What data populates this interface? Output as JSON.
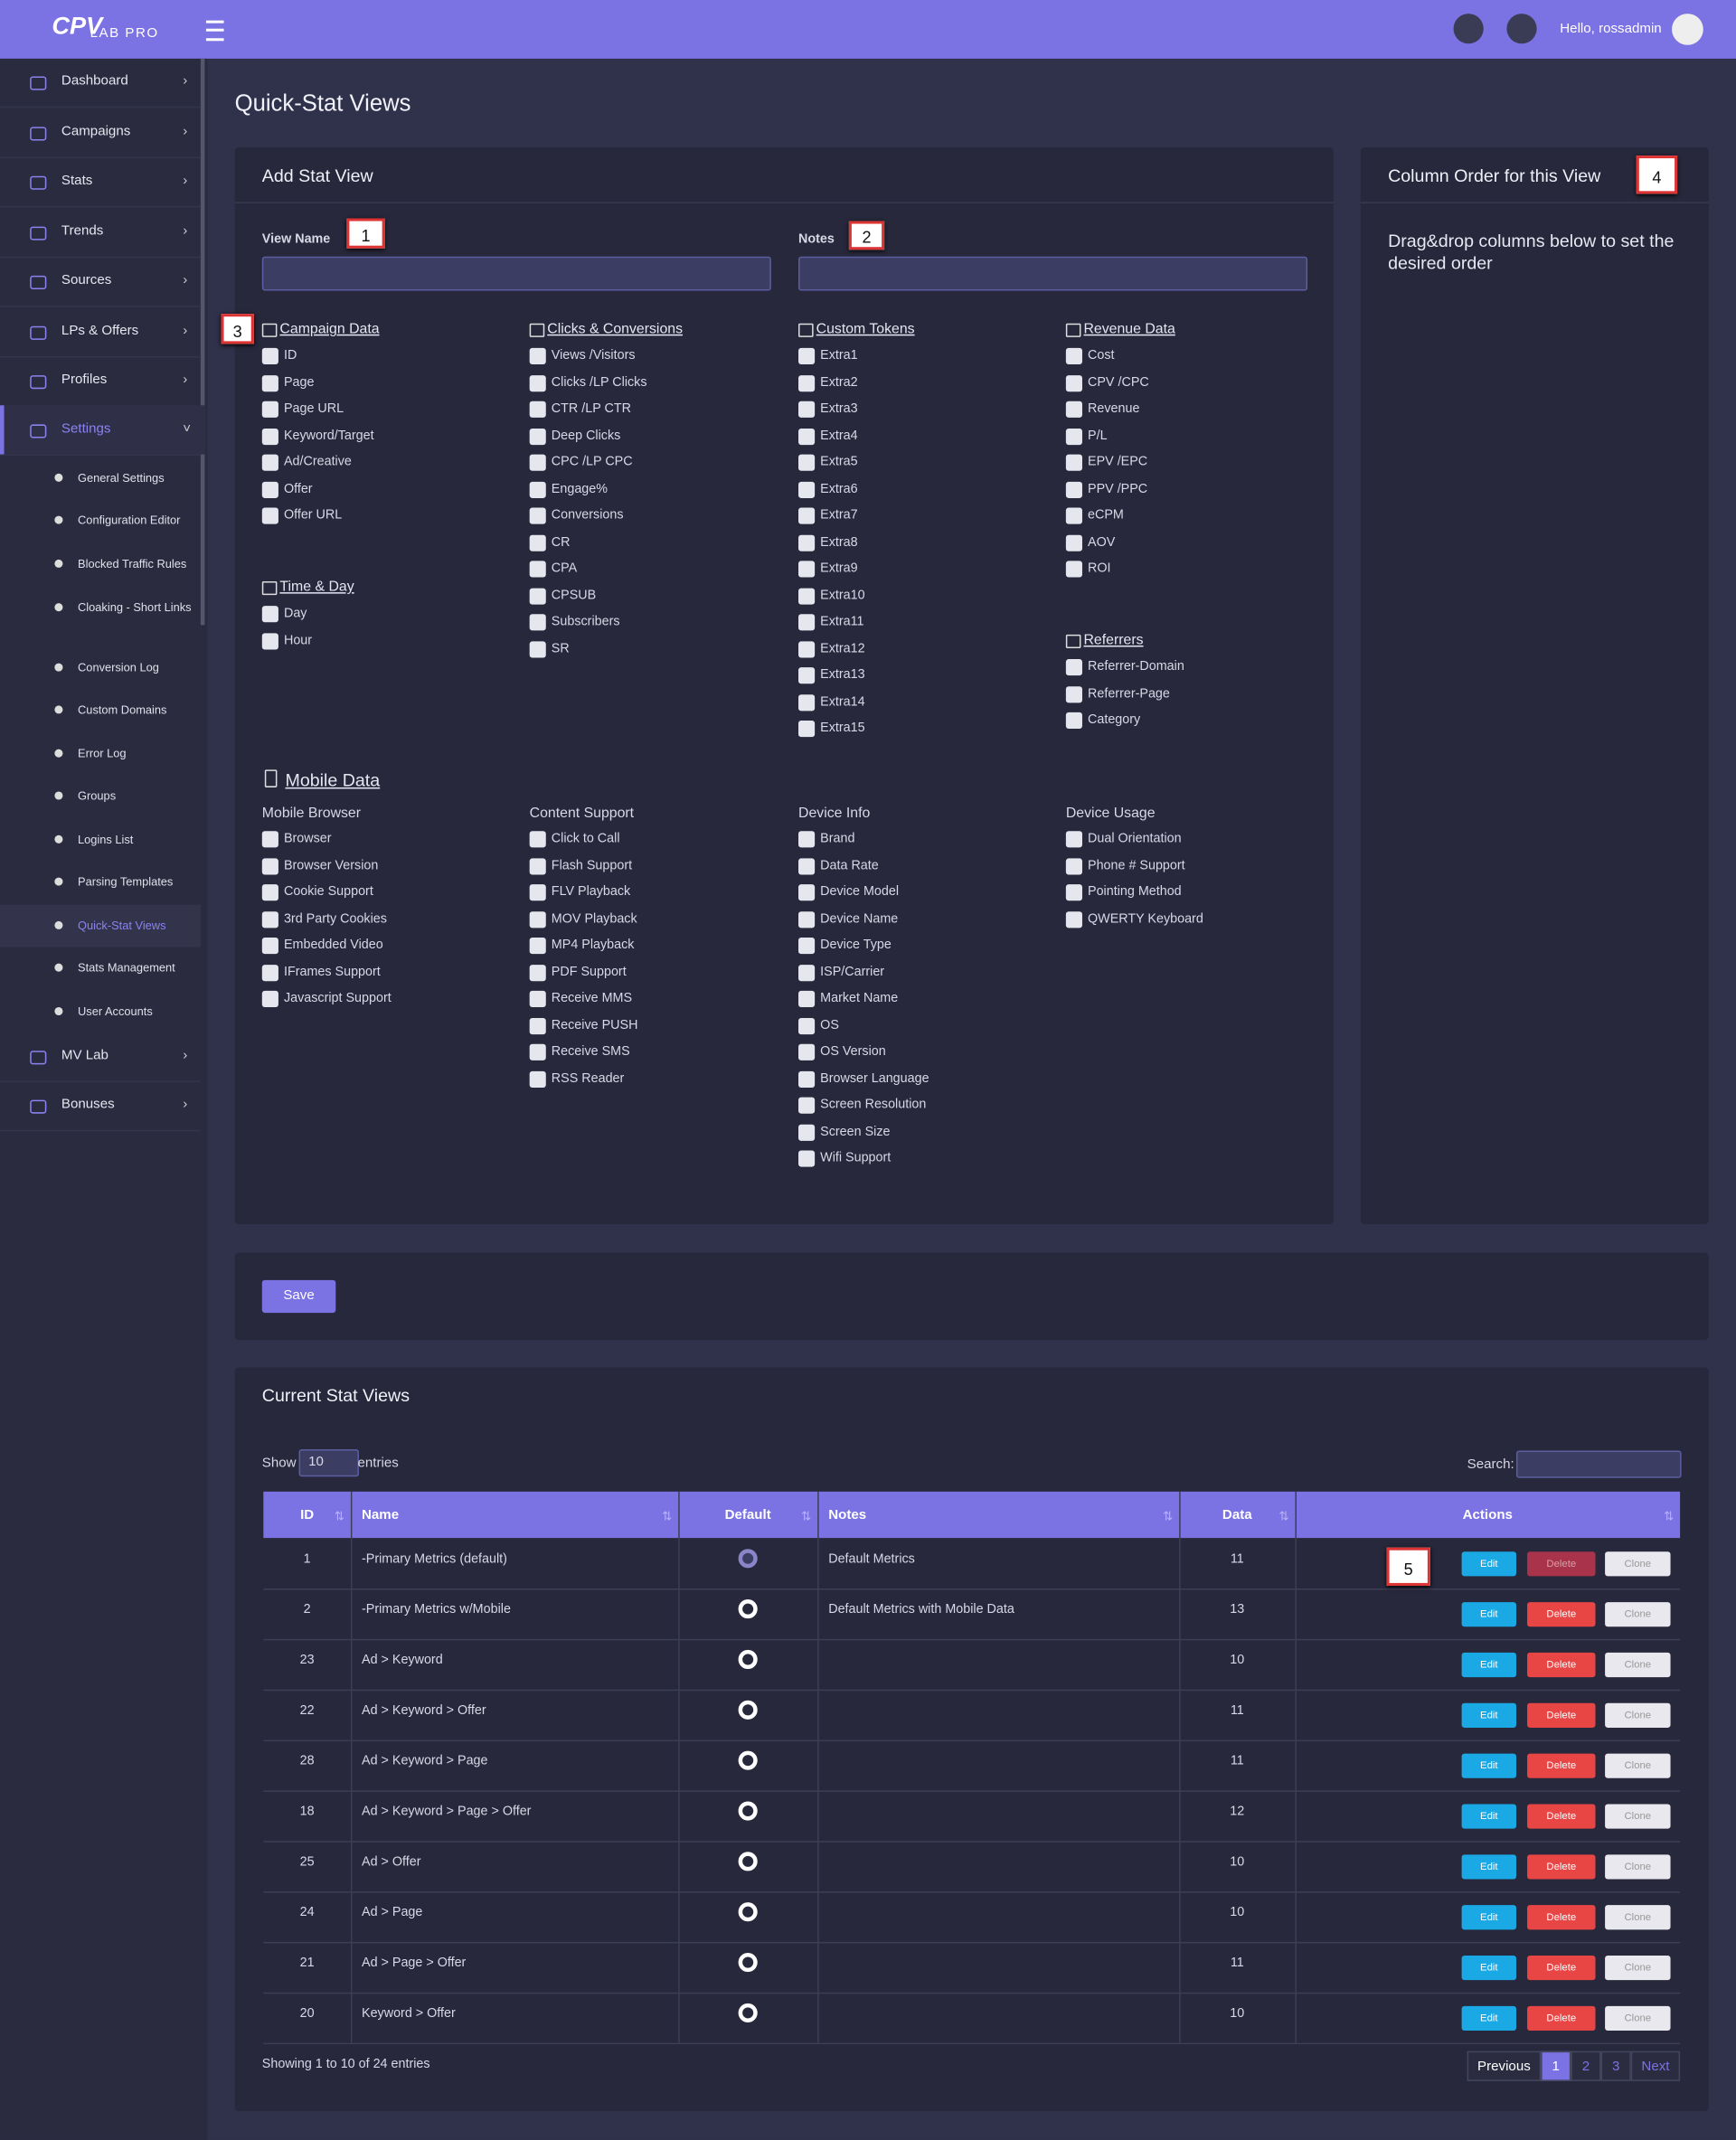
{
  "header": {
    "logo_main": "CPV",
    "logo_sub": "LAB PRO",
    "greeting": "Hello, rossadmin"
  },
  "sidebar": {
    "items": [
      "Dashboard",
      "Campaigns",
      "Stats",
      "Trends",
      "Sources",
      "LPs & Offers",
      "Profiles",
      "Settings",
      "MV Lab",
      "Bonuses"
    ],
    "settings_children": [
      "General Settings",
      "Configuration Editor",
      "Blocked Traffic Rules",
      "Cloaking - Short Links",
      "Conversion Log",
      "Custom Domains",
      "Error Log",
      "Groups",
      "Logins List",
      "Parsing Templates",
      "Quick-Stat Views",
      "Stats Management",
      "User Accounts"
    ]
  },
  "page_title": "Quick-Stat Views",
  "add_panel": {
    "title": "Add Stat View",
    "view_name_label": "View Name",
    "notes_label": "Notes",
    "sections": [
      {
        "title": "Campaign Data",
        "items": [
          "ID",
          "Page",
          "Page URL",
          "Keyword/Target",
          "Ad/Creative",
          "Offer",
          "Offer URL"
        ]
      },
      {
        "title": "Clicks & Conversions",
        "items": [
          "Views /Visitors",
          "Clicks /LP Clicks",
          "CTR /LP CTR",
          "Deep Clicks",
          "CPC /LP CPC",
          "Engage%",
          "Conversions",
          "CR",
          "CPA",
          "CPSUB",
          "Subscribers",
          "SR"
        ]
      },
      {
        "title": "Custom Tokens",
        "items": [
          "Extra1",
          "Extra2",
          "Extra3",
          "Extra4",
          "Extra5",
          "Extra6",
          "Extra7",
          "Extra8",
          "Extra9",
          "Extra10",
          "Extra11",
          "Extra12",
          "Extra13",
          "Extra14",
          "Extra15"
        ]
      },
      {
        "title": "Revenue Data",
        "items": [
          "Cost",
          "CPV /CPC",
          "Revenue",
          "P/L",
          "EPV /EPC",
          "PPV /PPC",
          "eCPM",
          "AOV",
          "ROI"
        ]
      },
      {
        "title": "Time & Day",
        "items": [
          "Day",
          "Hour"
        ]
      },
      {
        "title": "Referrers",
        "items": [
          "Referrer-Domain",
          "Referrer-Page",
          "Category"
        ]
      }
    ],
    "mobile": {
      "title": "Mobile Data",
      "groups": [
        {
          "title": "Mobile Browser",
          "items": [
            "Browser",
            "Browser Version",
            "Cookie Support",
            "3rd Party Cookies",
            "Embedded Video",
            "IFrames Support",
            "Javascript Support"
          ]
        },
        {
          "title": "Content Support",
          "items": [
            "Click to Call",
            "Flash Support",
            "FLV Playback",
            "MOV Playback",
            "MP4 Playback",
            "PDF Support",
            "Receive MMS",
            "Receive PUSH",
            "Receive SMS",
            "RSS Reader"
          ]
        },
        {
          "title": "Device Info",
          "items": [
            "Brand",
            "Data Rate",
            "Device Model",
            "Device Name",
            "Device Type",
            "ISP/Carrier",
            "Market Name",
            "OS",
            "OS Version",
            "Browser Language",
            "Screen Resolution",
            "Screen Size",
            "Wifi Support"
          ]
        },
        {
          "title": "Device Usage",
          "items": [
            "Dual Orientation",
            "Phone # Support",
            "Pointing Method",
            "QWERTY Keyboard"
          ]
        }
      ]
    }
  },
  "column_order": {
    "title": "Column Order for this View",
    "hint": "Drag&drop columns below to set the desired order"
  },
  "save": "Save",
  "current": {
    "title": "Current Stat Views",
    "show": "Show",
    "length": "10",
    "entries": "entries",
    "search": "Search:",
    "columns": [
      "ID",
      "Name",
      "Default",
      "Notes",
      "Data",
      "Actions"
    ],
    "rows": [
      {
        "id": 1,
        "name": "-Primary Metrics (default)",
        "default": true,
        "notes": "Default Metrics",
        "data": 11
      },
      {
        "id": 2,
        "name": "-Primary Metrics w/Mobile",
        "notes": "Default Metrics with Mobile Data",
        "data": 13
      },
      {
        "id": 23,
        "name": "Ad > Keyword",
        "data": 10
      },
      {
        "id": 22,
        "name": "Ad > Keyword > Offer",
        "data": 11
      },
      {
        "id": 28,
        "name": "Ad > Keyword > Page",
        "data": 11
      },
      {
        "id": 18,
        "name": "Ad > Keyword > Page > Offer",
        "data": 12
      },
      {
        "id": 25,
        "name": "Ad > Offer",
        "data": 10
      },
      {
        "id": 24,
        "name": "Ad > Page",
        "data": 10
      },
      {
        "id": 21,
        "name": "Ad > Page > Offer",
        "data": 11
      },
      {
        "id": 20,
        "name": "Keyword > Offer",
        "data": 10
      }
    ],
    "actions": [
      "Edit",
      "Delete",
      "Clone"
    ],
    "info": "Showing 1 to 10 of 24 entries",
    "pagination": [
      "Previous",
      "1",
      "2",
      "3",
      "Next"
    ]
  },
  "callouts": [
    "1",
    "2",
    "3",
    "4",
    "5"
  ]
}
